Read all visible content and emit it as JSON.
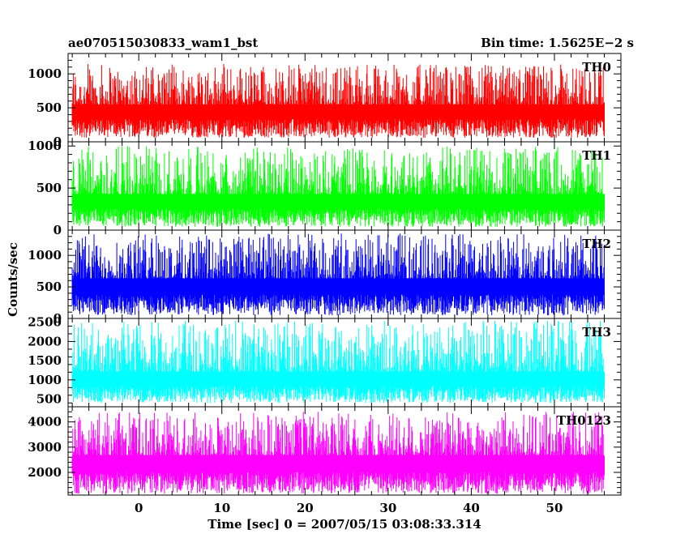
{
  "chart_data": {
    "type": "line",
    "title": "ae070515030833_wam1_bst",
    "bin_time_label": "Bin time: 1.5625E−2 s",
    "xlabel": "Time [sec] 0 = 2007/05/15 03:08:33.314",
    "ylabel": "Counts/sec",
    "xlim": [
      -8.5,
      58
    ],
    "x_data_range": [
      -8,
      56
    ],
    "x_ticks": [
      0,
      10,
      20,
      30,
      40,
      50
    ],
    "grid": false,
    "panels": [
      {
        "name": "TH0",
        "color": "#ff0000",
        "ylim": [
          0,
          1300
        ],
        "y_ticks": [
          0,
          500,
          1000
        ],
        "baseline": 60,
        "mean": 520,
        "peak": 1150
      },
      {
        "name": "TH1",
        "color": "#00ff00",
        "ylim": [
          0,
          1050
        ],
        "y_ticks": [
          0,
          500,
          1000
        ],
        "baseline": 40,
        "mean": 400,
        "peak": 1000
      },
      {
        "name": "TH2",
        "color": "#0000ff",
        "ylim": [
          0,
          1400
        ],
        "y_ticks": [
          0,
          500,
          1000
        ],
        "baseline": 50,
        "mean": 600,
        "peak": 1350
      },
      {
        "name": "TH3",
        "color": "#00ffff",
        "ylim": [
          300,
          2600
        ],
        "y_ticks": [
          500,
          1000,
          1500,
          2000,
          2500
        ],
        "baseline": 400,
        "mean": 1150,
        "peak": 2550
      },
      {
        "name": "TH0123",
        "color": "#ff00ff",
        "ylim": [
          1100,
          4600
        ],
        "y_ticks": [
          2000,
          3000,
          4000
        ],
        "baseline": 1150,
        "mean": 2600,
        "peak": 4400
      }
    ]
  }
}
